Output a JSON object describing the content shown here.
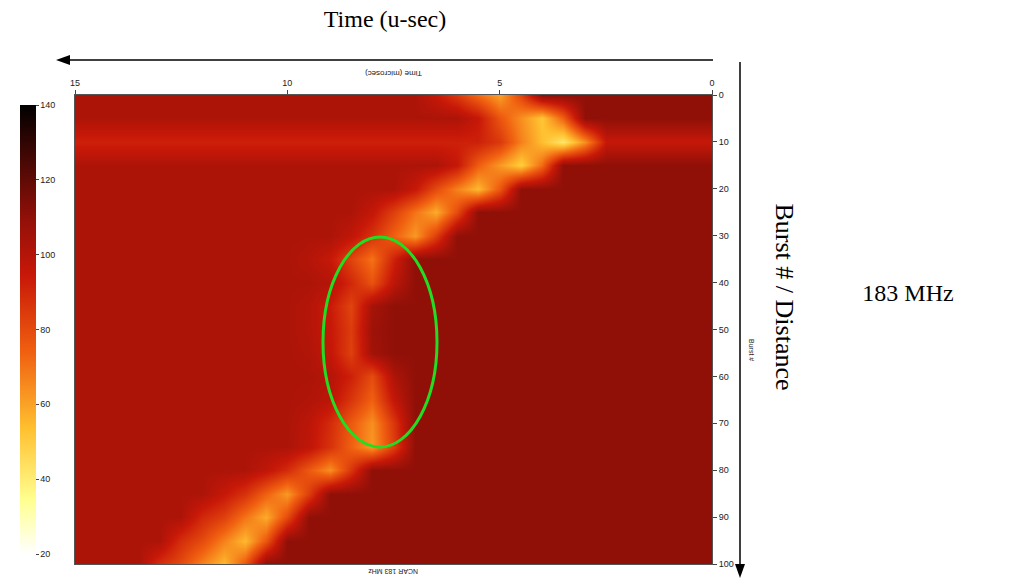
{
  "chart_data": {
    "type": "heatmap",
    "title": "NCAR 183 MHz",
    "xlabel": "Time (microsec)",
    "ylabel": "Burst #",
    "annotations": [
      "Time (u-sec)",
      "Burst # / Distance",
      "183 MHz"
    ],
    "x": [
      0,
      0.5,
      1,
      1.5,
      2,
      2.5,
      3,
      3.5,
      4,
      4.5,
      5,
      5.5,
      6,
      6.5,
      7,
      7.5,
      8,
      8.5,
      9,
      9.5,
      10,
      10.5,
      11,
      11.5,
      12,
      12.5,
      13,
      13.5,
      14,
      14.5,
      15
    ],
    "y": [
      0,
      5,
      10,
      15,
      20,
      25,
      30,
      35,
      40,
      45,
      50,
      55,
      60,
      65,
      70,
      75,
      80,
      85,
      90,
      95,
      100
    ],
    "cells": [
      [
        110,
        110,
        110,
        110,
        110,
        110,
        110,
        110,
        110,
        82,
        60,
        72,
        85,
        95,
        102,
        102,
        102,
        102,
        102,
        102,
        102,
        102,
        102,
        102,
        102,
        102,
        102,
        102,
        102,
        102,
        102
      ],
      [
        110,
        110,
        110,
        110,
        110,
        110,
        110,
        74,
        52,
        64,
        77,
        95,
        102,
        102,
        102,
        102,
        102,
        102,
        102,
        102,
        102,
        102,
        102,
        102,
        102,
        102,
        102,
        102,
        102,
        102,
        102
      ],
      [
        95,
        95,
        95,
        95,
        95,
        95,
        64,
        42,
        54,
        67,
        85,
        92,
        92,
        92,
        92,
        92,
        92,
        92,
        92,
        92,
        92,
        92,
        92,
        92,
        92,
        92,
        92,
        92,
        92,
        92,
        92
      ],
      [
        110,
        110,
        110,
        110,
        110,
        110,
        110,
        110,
        72,
        50,
        62,
        75,
        95,
        102,
        102,
        102,
        102,
        102,
        102,
        102,
        102,
        102,
        102,
        102,
        102,
        102,
        102,
        102,
        102,
        102,
        102
      ],
      [
        110,
        110,
        110,
        110,
        110,
        110,
        110,
        110,
        110,
        110,
        77,
        55,
        67,
        80,
        95,
        102,
        102,
        102,
        102,
        102,
        102,
        102,
        102,
        102,
        102,
        102,
        102,
        102,
        102,
        102,
        102
      ],
      [
        110,
        110,
        110,
        110,
        110,
        110,
        110,
        110,
        110,
        110,
        110,
        110,
        80,
        58,
        70,
        83,
        96,
        102,
        102,
        102,
        102,
        102,
        102,
        102,
        102,
        102,
        102,
        102,
        102,
        102,
        102
      ],
      [
        110,
        110,
        110,
        110,
        110,
        110,
        110,
        110,
        110,
        110,
        110,
        110,
        110,
        84,
        62,
        74,
        87,
        97,
        102,
        102,
        102,
        102,
        102,
        102,
        102,
        102,
        102,
        102,
        102,
        102,
        102
      ],
      [
        110,
        110,
        110,
        110,
        110,
        110,
        110,
        110,
        110,
        110,
        110,
        110,
        110,
        110,
        110,
        92,
        70,
        82,
        95,
        100,
        102,
        102,
        102,
        102,
        102,
        102,
        102,
        102,
        102,
        102,
        102
      ],
      [
        110,
        110,
        110,
        110,
        110,
        110,
        110,
        110,
        110,
        110,
        110,
        110,
        110,
        110,
        110,
        98,
        78,
        90,
        100,
        102,
        102,
        102,
        102,
        102,
        102,
        102,
        102,
        102,
        102,
        102,
        102
      ],
      [
        110,
        110,
        110,
        110,
        110,
        110,
        110,
        110,
        110,
        110,
        110,
        110,
        110,
        110,
        110,
        110,
        104,
        82,
        94,
        100,
        102,
        102,
        102,
        102,
        102,
        102,
        102,
        102,
        102,
        102,
        102
      ],
      [
        110,
        110,
        110,
        110,
        110,
        110,
        110,
        110,
        110,
        110,
        110,
        110,
        110,
        110,
        110,
        110,
        106,
        84,
        95,
        100,
        102,
        102,
        102,
        102,
        102,
        102,
        102,
        102,
        102,
        102,
        102
      ],
      [
        110,
        110,
        110,
        110,
        110,
        110,
        110,
        110,
        110,
        110,
        110,
        110,
        110,
        110,
        110,
        110,
        105,
        83,
        96,
        101,
        102,
        102,
        102,
        102,
        102,
        102,
        102,
        102,
        102,
        102,
        102
      ],
      [
        110,
        110,
        110,
        110,
        110,
        110,
        110,
        110,
        110,
        110,
        110,
        110,
        110,
        110,
        110,
        102,
        80,
        92,
        100,
        102,
        102,
        102,
        102,
        102,
        102,
        102,
        102,
        102,
        102,
        102,
        102
      ],
      [
        110,
        110,
        110,
        110,
        110,
        110,
        110,
        110,
        110,
        110,
        110,
        110,
        110,
        110,
        110,
        96,
        74,
        86,
        98,
        101,
        102,
        102,
        102,
        102,
        102,
        102,
        102,
        102,
        102,
        102,
        102
      ],
      [
        110,
        110,
        110,
        110,
        110,
        110,
        110,
        110,
        110,
        110,
        110,
        110,
        110,
        110,
        110,
        86,
        64,
        76,
        89,
        98,
        102,
        102,
        102,
        102,
        102,
        102,
        102,
        102,
        102,
        102,
        102
      ],
      [
        110,
        110,
        110,
        110,
        110,
        110,
        110,
        110,
        110,
        110,
        110,
        110,
        110,
        110,
        110,
        84,
        62,
        74,
        87,
        97,
        102,
        102,
        102,
        102,
        102,
        102,
        102,
        102,
        102,
        102,
        102
      ],
      [
        110,
        110,
        110,
        110,
        110,
        110,
        110,
        110,
        110,
        110,
        110,
        110,
        110,
        110,
        110,
        110,
        110,
        86,
        64,
        76,
        89,
        97,
        102,
        102,
        102,
        102,
        102,
        102,
        102,
        102,
        102
      ],
      [
        110,
        110,
        110,
        110,
        110,
        110,
        110,
        110,
        110,
        110,
        110,
        110,
        110,
        110,
        110,
        110,
        110,
        110,
        110,
        84,
        62,
        74,
        87,
        95,
        102,
        102,
        102,
        102,
        102,
        102,
        102
      ],
      [
        110,
        110,
        110,
        110,
        110,
        110,
        110,
        110,
        110,
        110,
        110,
        110,
        110,
        110,
        110,
        110,
        110,
        110,
        110,
        110,
        80,
        58,
        70,
        83,
        90,
        102,
        102,
        102,
        102,
        102,
        102
      ],
      [
        110,
        110,
        110,
        110,
        110,
        110,
        110,
        110,
        110,
        110,
        110,
        110,
        110,
        110,
        110,
        110,
        110,
        110,
        110,
        110,
        110,
        77,
        55,
        67,
        80,
        88,
        102,
        102,
        102,
        102,
        102
      ],
      [
        110,
        110,
        110,
        110,
        110,
        110,
        110,
        110,
        110,
        110,
        110,
        110,
        110,
        110,
        110,
        110,
        110,
        110,
        110,
        110,
        110,
        110,
        77,
        55,
        67,
        80,
        88,
        102,
        102,
        102,
        102
      ]
    ],
    "xlim": [
      15,
      0
    ],
    "xticks": [
      0,
      5,
      10,
      15
    ],
    "ylim": [
      100,
      0
    ],
    "yticks": [
      0,
      10,
      20,
      30,
      40,
      50,
      60,
      70,
      80,
      90,
      100
    ],
    "colorbar_range": [
      20,
      140
    ],
    "colorbar_ticks": [
      20,
      40,
      60,
      80,
      100,
      120,
      140
    ]
  }
}
